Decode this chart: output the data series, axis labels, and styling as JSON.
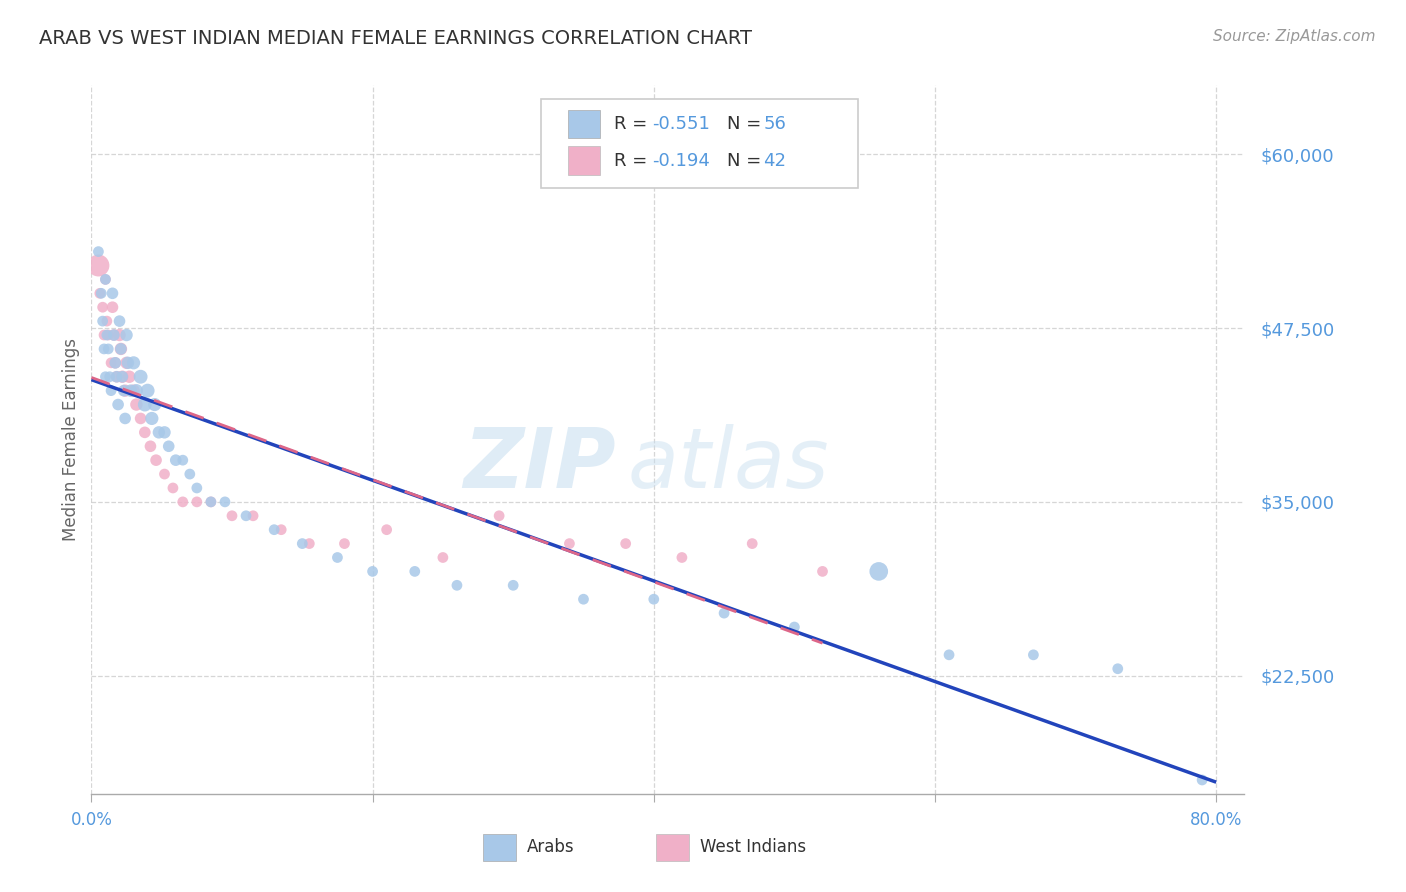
{
  "title": "ARAB VS WEST INDIAN MEDIAN FEMALE EARNINGS CORRELATION CHART",
  "source": "Source: ZipAtlas.com",
  "ylabel": "Median Female Earnings",
  "yticks": [
    22500,
    35000,
    47500,
    60000
  ],
  "ytick_labels": [
    "$22,500",
    "$35,000",
    "$47,500",
    "$60,000"
  ],
  "xlim": [
    0.0,
    0.82
  ],
  "ylim": [
    14000,
    65000
  ],
  "watermark_text": "ZIP",
  "watermark_text2": "atlas",
  "legend_r_arab": "-0.551",
  "legend_n_arab": "56",
  "legend_r_west": "-0.194",
  "legend_n_west": "42",
  "arab_color": "#a8c8e8",
  "west_color": "#f0b0c8",
  "arab_line_color": "#2244bb",
  "west_line_color": "#dd6688",
  "background_color": "#ffffff",
  "grid_color": "#cccccc",
  "title_color": "#333333",
  "axis_label_color": "#5599dd",
  "label_dark": "#333333",
  "arab_points_x": [
    0.005,
    0.007,
    0.008,
    0.009,
    0.01,
    0.01,
    0.011,
    0.012,
    0.013,
    0.014,
    0.015,
    0.016,
    0.017,
    0.018,
    0.019,
    0.02,
    0.021,
    0.022,
    0.023,
    0.024,
    0.025,
    0.026,
    0.028,
    0.03,
    0.032,
    0.035,
    0.038,
    0.04,
    0.043,
    0.045,
    0.048,
    0.052,
    0.055,
    0.06,
    0.065,
    0.07,
    0.075,
    0.085,
    0.095,
    0.11,
    0.13,
    0.15,
    0.175,
    0.2,
    0.23,
    0.26,
    0.3,
    0.35,
    0.4,
    0.45,
    0.5,
    0.56,
    0.61,
    0.67,
    0.73,
    0.79
  ],
  "arab_points_y": [
    53000,
    50000,
    48000,
    46000,
    44000,
    51000,
    47000,
    46000,
    44000,
    43000,
    50000,
    47000,
    45000,
    44000,
    42000,
    48000,
    46000,
    44000,
    43000,
    41000,
    47000,
    45000,
    43000,
    45000,
    43000,
    44000,
    42000,
    43000,
    41000,
    42000,
    40000,
    40000,
    39000,
    38000,
    38000,
    37000,
    36000,
    35000,
    35000,
    34000,
    33000,
    32000,
    31000,
    30000,
    30000,
    29000,
    29000,
    28000,
    28000,
    27000,
    26000,
    30000,
    24000,
    24000,
    23000,
    15000
  ],
  "arab_sizes": [
    60,
    60,
    60,
    60,
    60,
    60,
    60,
    60,
    60,
    60,
    70,
    70,
    70,
    70,
    70,
    70,
    70,
    70,
    70,
    70,
    80,
    80,
    80,
    90,
    90,
    100,
    100,
    100,
    90,
    90,
    80,
    80,
    70,
    70,
    60,
    60,
    60,
    60,
    60,
    60,
    60,
    60,
    60,
    60,
    60,
    60,
    60,
    60,
    60,
    60,
    60,
    180,
    60,
    60,
    60,
    60
  ],
  "west_points_x": [
    0.005,
    0.006,
    0.008,
    0.009,
    0.01,
    0.011,
    0.012,
    0.014,
    0.015,
    0.016,
    0.017,
    0.018,
    0.02,
    0.021,
    0.022,
    0.024,
    0.025,
    0.027,
    0.03,
    0.032,
    0.035,
    0.038,
    0.042,
    0.046,
    0.052,
    0.058,
    0.065,
    0.075,
    0.085,
    0.1,
    0.115,
    0.135,
    0.155,
    0.18,
    0.21,
    0.25,
    0.29,
    0.34,
    0.38,
    0.42,
    0.47,
    0.52
  ],
  "west_points_y": [
    52000,
    50000,
    49000,
    47000,
    51000,
    48000,
    47000,
    45000,
    49000,
    47000,
    45000,
    44000,
    47000,
    46000,
    44000,
    43000,
    45000,
    44000,
    43000,
    42000,
    41000,
    40000,
    39000,
    38000,
    37000,
    36000,
    35000,
    35000,
    35000,
    34000,
    34000,
    33000,
    32000,
    32000,
    33000,
    31000,
    34000,
    32000,
    32000,
    31000,
    32000,
    30000
  ],
  "west_sizes": [
    250,
    60,
    60,
    60,
    60,
    60,
    60,
    60,
    70,
    70,
    70,
    70,
    80,
    80,
    80,
    80,
    80,
    80,
    80,
    80,
    70,
    70,
    70,
    70,
    60,
    60,
    60,
    60,
    60,
    60,
    60,
    60,
    60,
    60,
    60,
    60,
    60,
    60,
    60,
    60,
    60,
    60
  ]
}
